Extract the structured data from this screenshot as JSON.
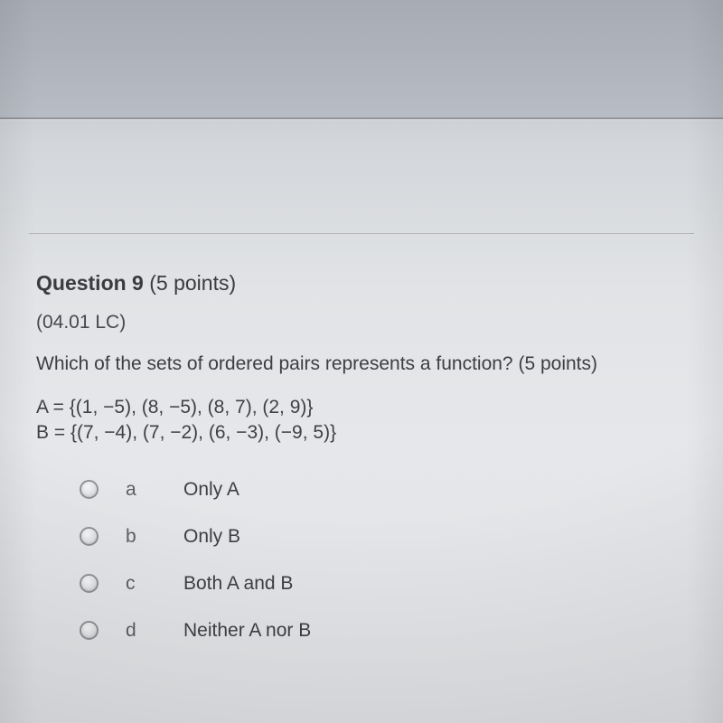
{
  "question": {
    "number_label": "Question 9",
    "points_label": "(5 points)",
    "code": "(04.01 LC)",
    "prompt": "Which of the sets of ordered pairs represents a function? (5 points)",
    "set_a": "A = {(1, −5), (8, −5), (8, 7), (2, 9)}",
    "set_b": "B = {(7, −4), (7, −2), (6, −3), (−9, 5)}"
  },
  "options": [
    {
      "letter": "a",
      "text": "Only A"
    },
    {
      "letter": "b",
      "text": "Only B"
    },
    {
      "letter": "c",
      "text": "Both A and B"
    },
    {
      "letter": "d",
      "text": "Neither A nor B"
    }
  ],
  "style": {
    "font_family": "Helvetica Neue, Helvetica, Arial, sans-serif",
    "text_color": "#3f4043",
    "muted_color": "#5c5e62",
    "background_gradient": [
      "#aeb3bc",
      "#e5e7ea"
    ],
    "radio_border": "#8f9297",
    "question_fontsize_pt": 16,
    "body_fontsize_pt": 15
  }
}
